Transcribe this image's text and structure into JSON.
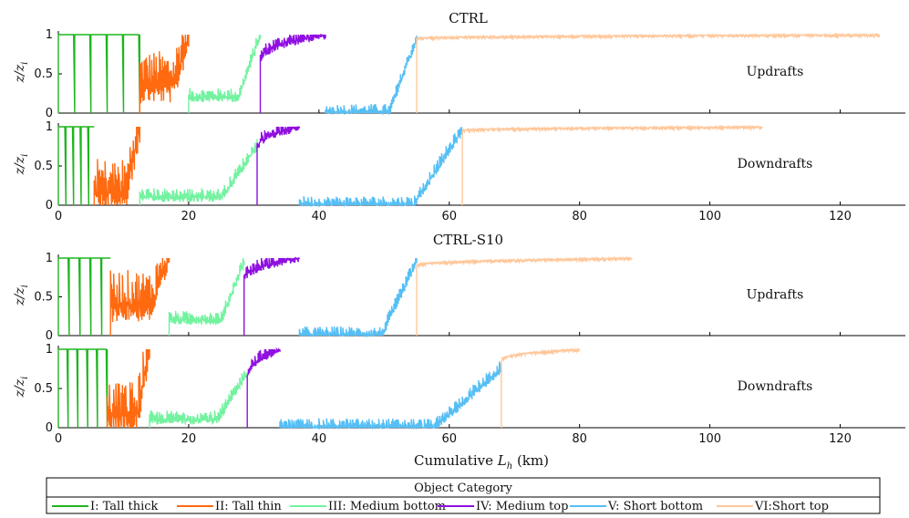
{
  "chart_data": {
    "type": "line",
    "xlabel": "Cumulative L_h (km)",
    "xlabel_prefix": "Cumulative ",
    "xlabel_var": "L",
    "xlabel_sub": "h",
    "xlabel_unit": " (km)",
    "ylabel": "z/z_i",
    "ylabel_num": "z/z",
    "ylabel_sub": "i",
    "xlim": [
      0,
      130
    ],
    "ylim": [
      0,
      1
    ],
    "xticks": [
      "0",
      "20",
      "40",
      "60",
      "80",
      "100",
      "120"
    ],
    "yticks": [
      "0",
      "0.5",
      "1"
    ],
    "series_colors": [
      "#1fb51f",
      "#ff6a10",
      "#73f2a0",
      "#8f10e0",
      "#55bff5",
      "#ffc79a"
    ],
    "panels": [
      {
        "group_title": "CTRL",
        "annotation": "Updrafts",
        "series": [
          {
            "x_start": 0,
            "x_end": 12.5,
            "y_base": 1.0,
            "y_end": 1.0
          },
          {
            "x_start": 12.5,
            "x_end": 20.0,
            "y_base": 0.35,
            "y_end": 1.0
          },
          {
            "x_start": 20.0,
            "x_end": 31.0,
            "y_base": 0.2,
            "y_end": 1.0
          },
          {
            "x_start": 31.0,
            "x_end": 41.0,
            "y_base": 0.65,
            "y_end": 1.0
          },
          {
            "x_start": 41.0,
            "x_end": 55.0,
            "y_base": 0.0,
            "y_end": 0.95
          },
          {
            "x_start": 55.0,
            "x_end": 126.0,
            "y_base": 0.95,
            "y_end": 1.0
          }
        ]
      },
      {
        "group_title": "",
        "annotation": "Downdrafts",
        "series": [
          {
            "x_start": 0,
            "x_end": 5.5,
            "y_base": 1.0,
            "y_end": 1.0
          },
          {
            "x_start": 5.5,
            "x_end": 12.5,
            "y_base": 0.15,
            "y_end": 1.0
          },
          {
            "x_start": 12.5,
            "x_end": 30.5,
            "y_base": 0.1,
            "y_end": 0.75
          },
          {
            "x_start": 30.5,
            "x_end": 37.0,
            "y_base": 0.7,
            "y_end": 1.0
          },
          {
            "x_start": 37.0,
            "x_end": 62.0,
            "y_base": 0.0,
            "y_end": 0.95
          },
          {
            "x_start": 62.0,
            "x_end": 108.0,
            "y_base": 0.95,
            "y_end": 1.0
          }
        ]
      },
      {
        "group_title": "CTRL-S10",
        "annotation": "Updrafts",
        "series": [
          {
            "x_start": 0,
            "x_end": 8.0,
            "y_base": 1.0,
            "y_end": 1.0
          },
          {
            "x_start": 8.0,
            "x_end": 17.0,
            "y_base": 0.4,
            "y_end": 1.0
          },
          {
            "x_start": 17.0,
            "x_end": 28.5,
            "y_base": 0.2,
            "y_end": 0.95
          },
          {
            "x_start": 28.5,
            "x_end": 37.0,
            "y_base": 0.7,
            "y_end": 1.0
          },
          {
            "x_start": 37.0,
            "x_end": 55.0,
            "y_base": 0.0,
            "y_end": 0.95
          },
          {
            "x_start": 55.0,
            "x_end": 88.0,
            "y_base": 0.9,
            "y_end": 1.0
          }
        ]
      },
      {
        "group_title": "",
        "annotation": "Downdrafts",
        "series": [
          {
            "x_start": 0,
            "x_end": 7.5,
            "y_base": 1.0,
            "y_end": 1.0
          },
          {
            "x_start": 7.5,
            "x_end": 14.0,
            "y_base": 0.15,
            "y_end": 1.0
          },
          {
            "x_start": 14.0,
            "x_end": 29.0,
            "y_base": 0.1,
            "y_end": 0.7
          },
          {
            "x_start": 29.0,
            "x_end": 34.0,
            "y_base": 0.6,
            "y_end": 1.0
          },
          {
            "x_start": 34.0,
            "x_end": 68.0,
            "y_base": 0.0,
            "y_end": 0.75
          },
          {
            "x_start": 68.0,
            "x_end": 80.0,
            "y_base": 0.85,
            "y_end": 1.0
          }
        ]
      }
    ],
    "legend": {
      "title": "Object Category",
      "placement": "bottom",
      "items": [
        "I: Tall thick",
        "II: Tall thin",
        "III: Medium bottom",
        "IV: Medium top",
        "V: Short bottom",
        "VI:Short top"
      ]
    }
  }
}
